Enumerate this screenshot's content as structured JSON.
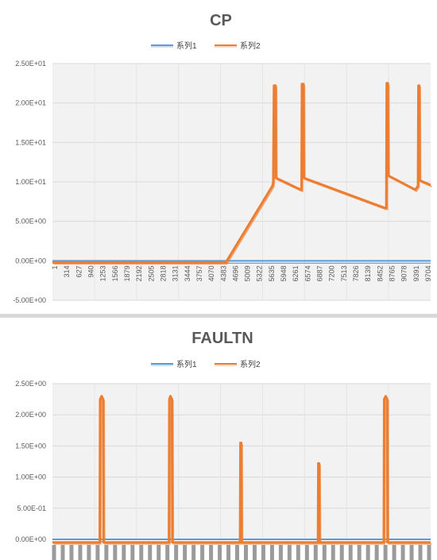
{
  "colors": {
    "series1": "#5b9bd5",
    "series2": "#ed7d31",
    "plot_bg": "#f2f2f2",
    "grid": "#d9d9d9",
    "text": "#595959"
  },
  "chart_data": [
    {
      "type": "line",
      "title": "CP",
      "xlabel": "",
      "ylabel": "",
      "legend_position": "top",
      "grid": true,
      "ylim": [
        -5,
        25
      ],
      "y_tick_labels": [
        "2.50E+01",
        "2.00E+01",
        "1.50E+01",
        "1.00E+01",
        "5.00E+00",
        "0.00E+00",
        "-5.00E+00"
      ],
      "x_tick_labels": [
        "1",
        "314",
        "627",
        "940",
        "1253",
        "1566",
        "1879",
        "2192",
        "2505",
        "2818",
        "3131",
        "3444",
        "3757",
        "4070",
        "4383",
        "4696",
        "5009",
        "5322",
        "5635",
        "5948",
        "6261",
        "6574",
        "6887",
        "7200",
        "7513",
        "7826",
        "8139",
        "8452",
        "8765",
        "9078",
        "9391",
        "9704"
      ],
      "xlim": [
        1,
        9900
      ],
      "series": [
        {
          "name": "系列1",
          "description_values": "constant",
          "x": [
            1,
            9900
          ],
          "y": [
            0,
            0
          ]
        },
        {
          "name": "系列2",
          "x": [
            1,
            4540,
            5760,
            5780,
            5800,
            5840,
            5850,
            6500,
            6520,
            6530,
            6570,
            6580,
            8700,
            8740,
            8750,
            8780,
            8790,
            9500,
            9570,
            9580,
            9600,
            9610,
            9900
          ],
          "y": [
            -0.2,
            -0.2,
            9.5,
            10,
            22.2,
            22.2,
            10.5,
            9.0,
            9.0,
            22.4,
            22.4,
            10.5,
            6.7,
            6.7,
            22.5,
            22.5,
            10.8,
            9.0,
            9.5,
            22.2,
            22.2,
            10.2,
            9.6
          ]
        }
      ]
    },
    {
      "type": "line",
      "title": "FAULTN",
      "xlabel": "",
      "ylabel": "",
      "legend_position": "top",
      "grid": true,
      "ylim": [
        0,
        2.5
      ],
      "y_tick_labels": [
        "2.50E+00",
        "2.00E+00",
        "1.50E+00",
        "1.00E+00",
        "5.00E-01",
        "0.00E+00"
      ],
      "xlim": [
        0,
        100
      ],
      "series": [
        {
          "name": "系列1",
          "x": [
            0,
            100
          ],
          "y": [
            0,
            0
          ]
        },
        {
          "name": "系列2",
          "x": [
            0,
            12.5,
            12.6,
            13.0,
            13.4,
            13.5,
            30.8,
            30.9,
            31.2,
            31.6,
            31.7,
            49.6,
            49.7,
            49.9,
            50.0,
            70.2,
            70.3,
            70.5,
            70.6,
            87.6,
            87.7,
            88.1,
            88.5,
            88.6,
            100
          ],
          "y": [
            -0.05,
            -0.05,
            2.25,
            2.3,
            2.25,
            -0.05,
            -0.05,
            2.25,
            2.3,
            2.25,
            -0.05,
            -0.05,
            1.55,
            1.55,
            -0.05,
            -0.05,
            1.22,
            1.22,
            -0.05,
            -0.05,
            2.25,
            2.3,
            2.25,
            -0.05,
            -0.05
          ]
        }
      ]
    }
  ]
}
